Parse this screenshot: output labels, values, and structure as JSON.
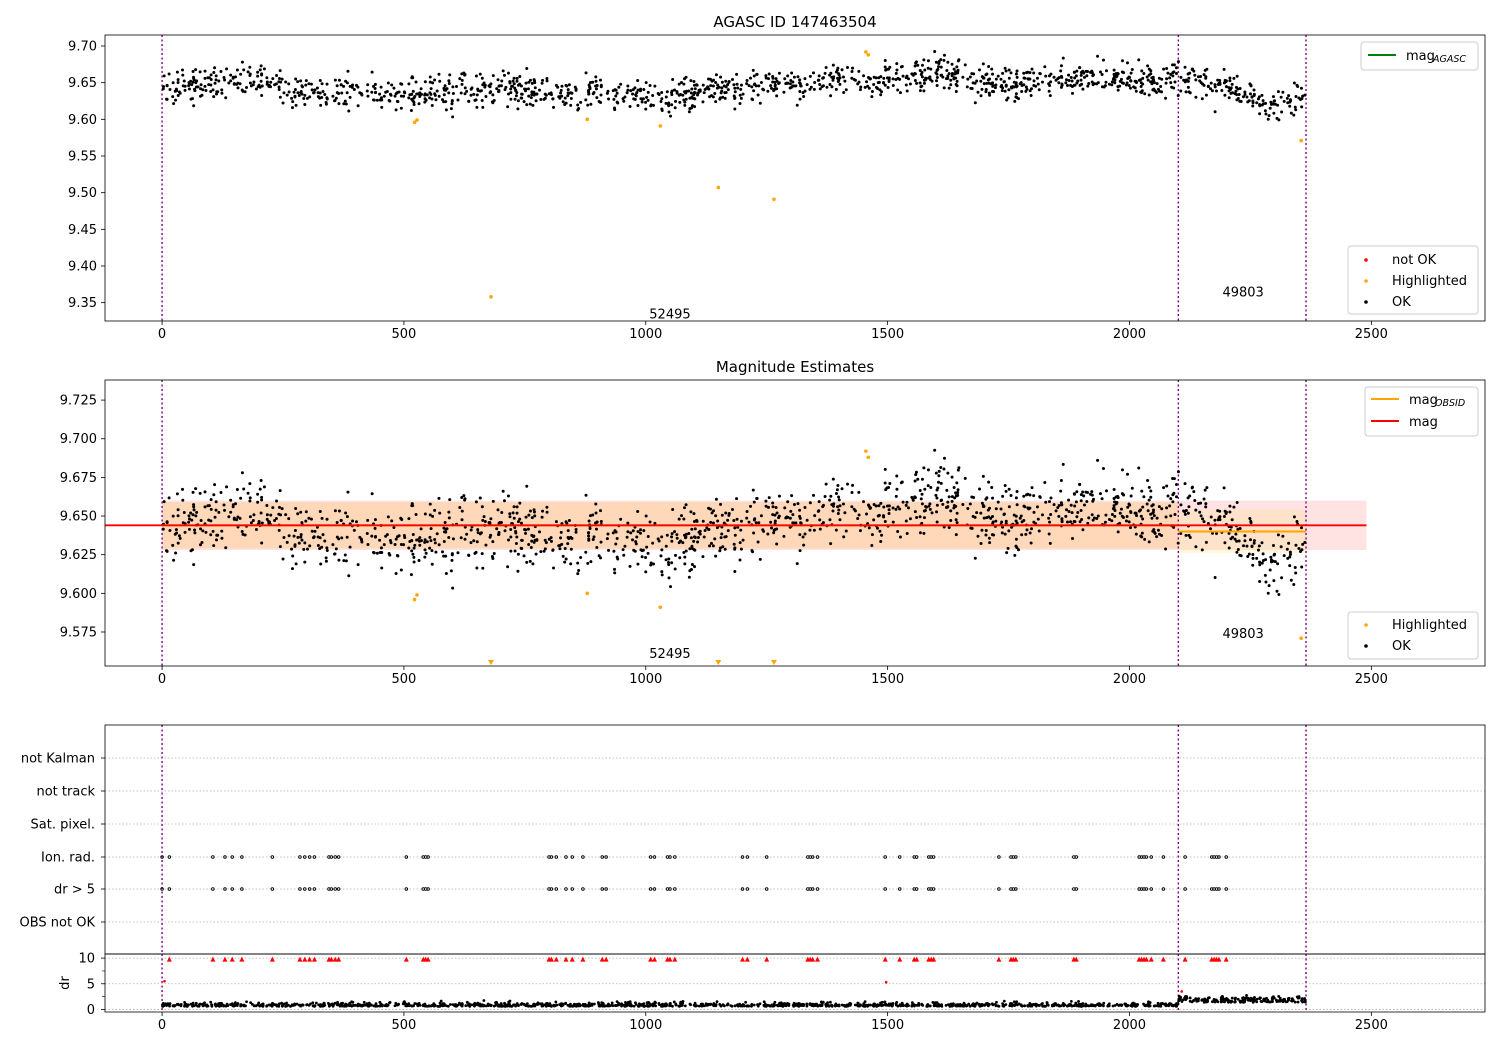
{
  "chart_data": [
    {
      "type": "scatter",
      "title": "AGASC ID 147463504",
      "xlim": [
        -118,
        2735
      ],
      "ylim": [
        9.325,
        9.715
      ],
      "xticks": [
        0,
        500,
        1000,
        1500,
        2000,
        2500
      ],
      "yticks": [
        9.35,
        9.4,
        9.45,
        9.5,
        9.55,
        9.6,
        9.65,
        9.7
      ],
      "ytick_labels": [
        "9.35",
        "9.40",
        "9.45",
        "9.50",
        "9.55",
        "9.60",
        "9.65",
        "9.70"
      ],
      "vlines": [
        0,
        2101,
        2365
      ],
      "annotations": [
        {
          "text": "52495",
          "x": 1050,
          "y": 9.335
        },
        {
          "text": "49803",
          "x": 2235,
          "y": 9.365
        }
      ],
      "line_legend": [
        {
          "label": "mag",
          "sub": "AGASC",
          "color": "#008000"
        }
      ],
      "scatter_legend": [
        {
          "label": "not OK",
          "color": "#ff0000"
        },
        {
          "label": "Highlighted",
          "color": "#ffa500"
        },
        {
          "label": "OK",
          "color": "#000000"
        }
      ],
      "ok_trend": {
        "x": [
          0,
          100,
          200,
          300,
          400,
          500,
          600,
          700,
          800,
          900,
          1000,
          1100,
          1200,
          1300,
          1400,
          1500,
          1600,
          1700,
          1800,
          1900,
          2000,
          2100,
          2200,
          2280,
          2365
        ],
        "y": [
          9.645,
          9.648,
          9.655,
          9.635,
          9.638,
          9.632,
          9.636,
          9.644,
          9.633,
          9.64,
          9.63,
          9.638,
          9.642,
          9.648,
          9.655,
          9.652,
          9.665,
          9.648,
          9.652,
          9.658,
          9.652,
          9.655,
          9.648,
          9.62,
          9.63
        ],
        "spread": 0.011,
        "count": 1450
      },
      "highlighted": {
        "x": [
          522,
          527,
          680,
          879,
          1030,
          1150,
          1265,
          1455,
          1460,
          2355
        ],
        "y": [
          9.596,
          9.599,
          9.358,
          9.6,
          9.591,
          9.507,
          9.491,
          9.692,
          9.688,
          9.571
        ]
      }
    },
    {
      "type": "scatter",
      "title": "Magnitude Estimates",
      "xlim": [
        -118,
        2735
      ],
      "ylim": [
        9.553,
        9.738
      ],
      "xticks": [
        0,
        500,
        1000,
        1500,
        2000,
        2500
      ],
      "yticks": [
        9.575,
        9.6,
        9.625,
        9.65,
        9.675,
        9.7,
        9.725
      ],
      "ytick_labels": [
        "9.575",
        "9.600",
        "9.625",
        "9.650",
        "9.675",
        "9.700",
        "9.725"
      ],
      "vlines": [
        0,
        2101,
        2365
      ],
      "annotations": [
        {
          "text": "52495",
          "x": 1050,
          "y": 9.5615
        },
        {
          "text": "49803",
          "x": 2235,
          "y": 9.5745
        }
      ],
      "mag": 9.644,
      "mag_band": [
        9.628,
        9.66
      ],
      "mag_band_xrange": [
        0,
        2490
      ],
      "obsid_band": [
        9.629,
        9.659
      ],
      "obsid_segments": [
        {
          "x": [
            0,
            2101
          ],
          "y": 9.644
        },
        {
          "x": [
            2101,
            2365
          ],
          "y": 9.64
        }
      ],
      "line_legend": [
        {
          "label": "mag",
          "sub": "OBSID",
          "color": "#ffa500"
        },
        {
          "label": "mag",
          "sub": "",
          "color": "#ff0000"
        }
      ],
      "scatter_legend": [
        {
          "label": "Highlighted",
          "color": "#ffa500"
        },
        {
          "label": "OK",
          "color": "#000000"
        }
      ],
      "highlighted": {
        "x": [
          522,
          527,
          879,
          1030,
          1455,
          1460,
          2355
        ],
        "y": [
          9.596,
          9.599,
          9.6,
          9.591,
          9.692,
          9.688,
          9.571
        ]
      },
      "offscale_markers": {
        "x": [
          680,
          1150,
          1265
        ]
      }
    },
    {
      "type": "scatter",
      "flag_rows": [
        "not Kalman",
        "not track",
        "Sat. pixel.",
        "Ion. rad.",
        "dr > 5",
        "OBS not OK"
      ],
      "flag_points": {
        "Ion. rad.": [
          0,
          15,
          105,
          130,
          145,
          165,
          228,
          285,
          295,
          305,
          315,
          345,
          350,
          358,
          365,
          505,
          540,
          545,
          550,
          800,
          805,
          815,
          835,
          848,
          870,
          910,
          918,
          1010,
          1018,
          1045,
          1050,
          1060,
          1200,
          1210,
          1250,
          1335,
          1340,
          1345,
          1355,
          1495,
          1525,
          1555,
          1560,
          1585,
          1590,
          1595,
          1730,
          1755,
          1760,
          1765,
          1885,
          1890,
          2020,
          2025,
          2030,
          2035,
          2045,
          2070,
          2115,
          2170,
          2175,
          2180,
          2185,
          2200
        ],
        "dr > 5": [
          0,
          15,
          105,
          130,
          145,
          165,
          228,
          285,
          295,
          305,
          315,
          345,
          350,
          358,
          365,
          505,
          540,
          545,
          550,
          800,
          805,
          815,
          835,
          848,
          870,
          910,
          918,
          1010,
          1018,
          1045,
          1050,
          1060,
          1200,
          1210,
          1250,
          1335,
          1340,
          1345,
          1355,
          1495,
          1525,
          1555,
          1560,
          1585,
          1590,
          1595,
          1730,
          1755,
          1760,
          1765,
          1885,
          1890,
          2020,
          2025,
          2030,
          2035,
          2045,
          2070,
          2115,
          2170,
          2175,
          2180,
          2185,
          2200
        ]
      }
    },
    {
      "type": "scatter",
      "ylabel": "dr",
      "xlim": [
        -118,
        2735
      ],
      "ylim": [
        -0.5,
        10.8
      ],
      "xticks": [
        0,
        500,
        1000,
        1500,
        2000,
        2500
      ],
      "xtick_labels": [
        "0",
        "500",
        "1000",
        "1500",
        "2000",
        "2500"
      ],
      "yticks": [
        0,
        5,
        10
      ],
      "ytick_labels": [
        "0",
        "5",
        "10"
      ],
      "vlines": [
        0,
        2101,
        2365
      ],
      "high_dr_markers": {
        "x": [
          15,
          105,
          130,
          145,
          165,
          228,
          285,
          295,
          305,
          315,
          345,
          350,
          358,
          365,
          505,
          540,
          545,
          550,
          800,
          805,
          815,
          835,
          848,
          870,
          910,
          918,
          1010,
          1018,
          1045,
          1050,
          1060,
          1200,
          1210,
          1250,
          1335,
          1340,
          1345,
          1355,
          1495,
          1525,
          1555,
          1560,
          1585,
          1590,
          1595,
          1730,
          1755,
          1760,
          1765,
          1885,
          1890,
          2020,
          2025,
          2030,
          2035,
          2045,
          2070,
          2115,
          2170,
          2175,
          2180,
          2185,
          2200
        ],
        "y": 9.8
      },
      "mid_dr_points": {
        "x": [
          5,
          1497,
          2108
        ],
        "y": [
          5.5,
          5.3,
          3.5
        ]
      },
      "dr_baseline": {
        "level": 0.6,
        "spread": 0.35,
        "tail_start": 2101,
        "tail_level": 1.4,
        "count": 1450
      }
    }
  ]
}
